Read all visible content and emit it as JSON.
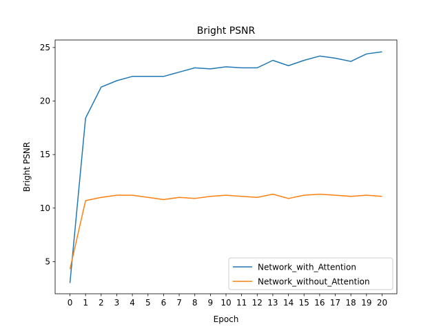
{
  "chart_data": {
    "type": "line",
    "title": "Bright PSNR",
    "xlabel": "Epoch",
    "ylabel": "Bright PSNR",
    "x": [
      0,
      1,
      2,
      3,
      4,
      5,
      6,
      7,
      8,
      9,
      10,
      11,
      12,
      13,
      14,
      15,
      16,
      17,
      18,
      19,
      20
    ],
    "xticks": [
      "0",
      "1",
      "2",
      "3",
      "4",
      "5",
      "6",
      "7",
      "8",
      "9",
      "10",
      "11",
      "12",
      "13",
      "14",
      "15",
      "16",
      "17",
      "18",
      "19",
      "20"
    ],
    "yticks": [
      "5",
      "10",
      "15",
      "20",
      "25"
    ],
    "ylim": [
      2.0,
      25.7
    ],
    "xlim": [
      -0.95,
      20.95
    ],
    "grid": false,
    "legend_position": "lower-right",
    "series": [
      {
        "name": "Network_with_Attention",
        "color": "#1f77b4",
        "values": [
          3.0,
          18.4,
          21.3,
          21.9,
          22.3,
          22.3,
          22.3,
          22.7,
          23.1,
          23.0,
          23.2,
          23.1,
          23.1,
          23.8,
          23.3,
          23.8,
          24.2,
          24.0,
          23.7,
          24.4,
          24.6
        ]
      },
      {
        "name": "Network_without_Attention",
        "color": "#ff7f0e",
        "values": [
          4.3,
          10.7,
          11.0,
          11.2,
          11.2,
          11.0,
          10.8,
          11.0,
          10.9,
          11.1,
          11.2,
          11.1,
          11.0,
          11.3,
          10.9,
          11.2,
          11.3,
          11.2,
          11.1,
          11.2,
          11.1
        ]
      }
    ]
  }
}
